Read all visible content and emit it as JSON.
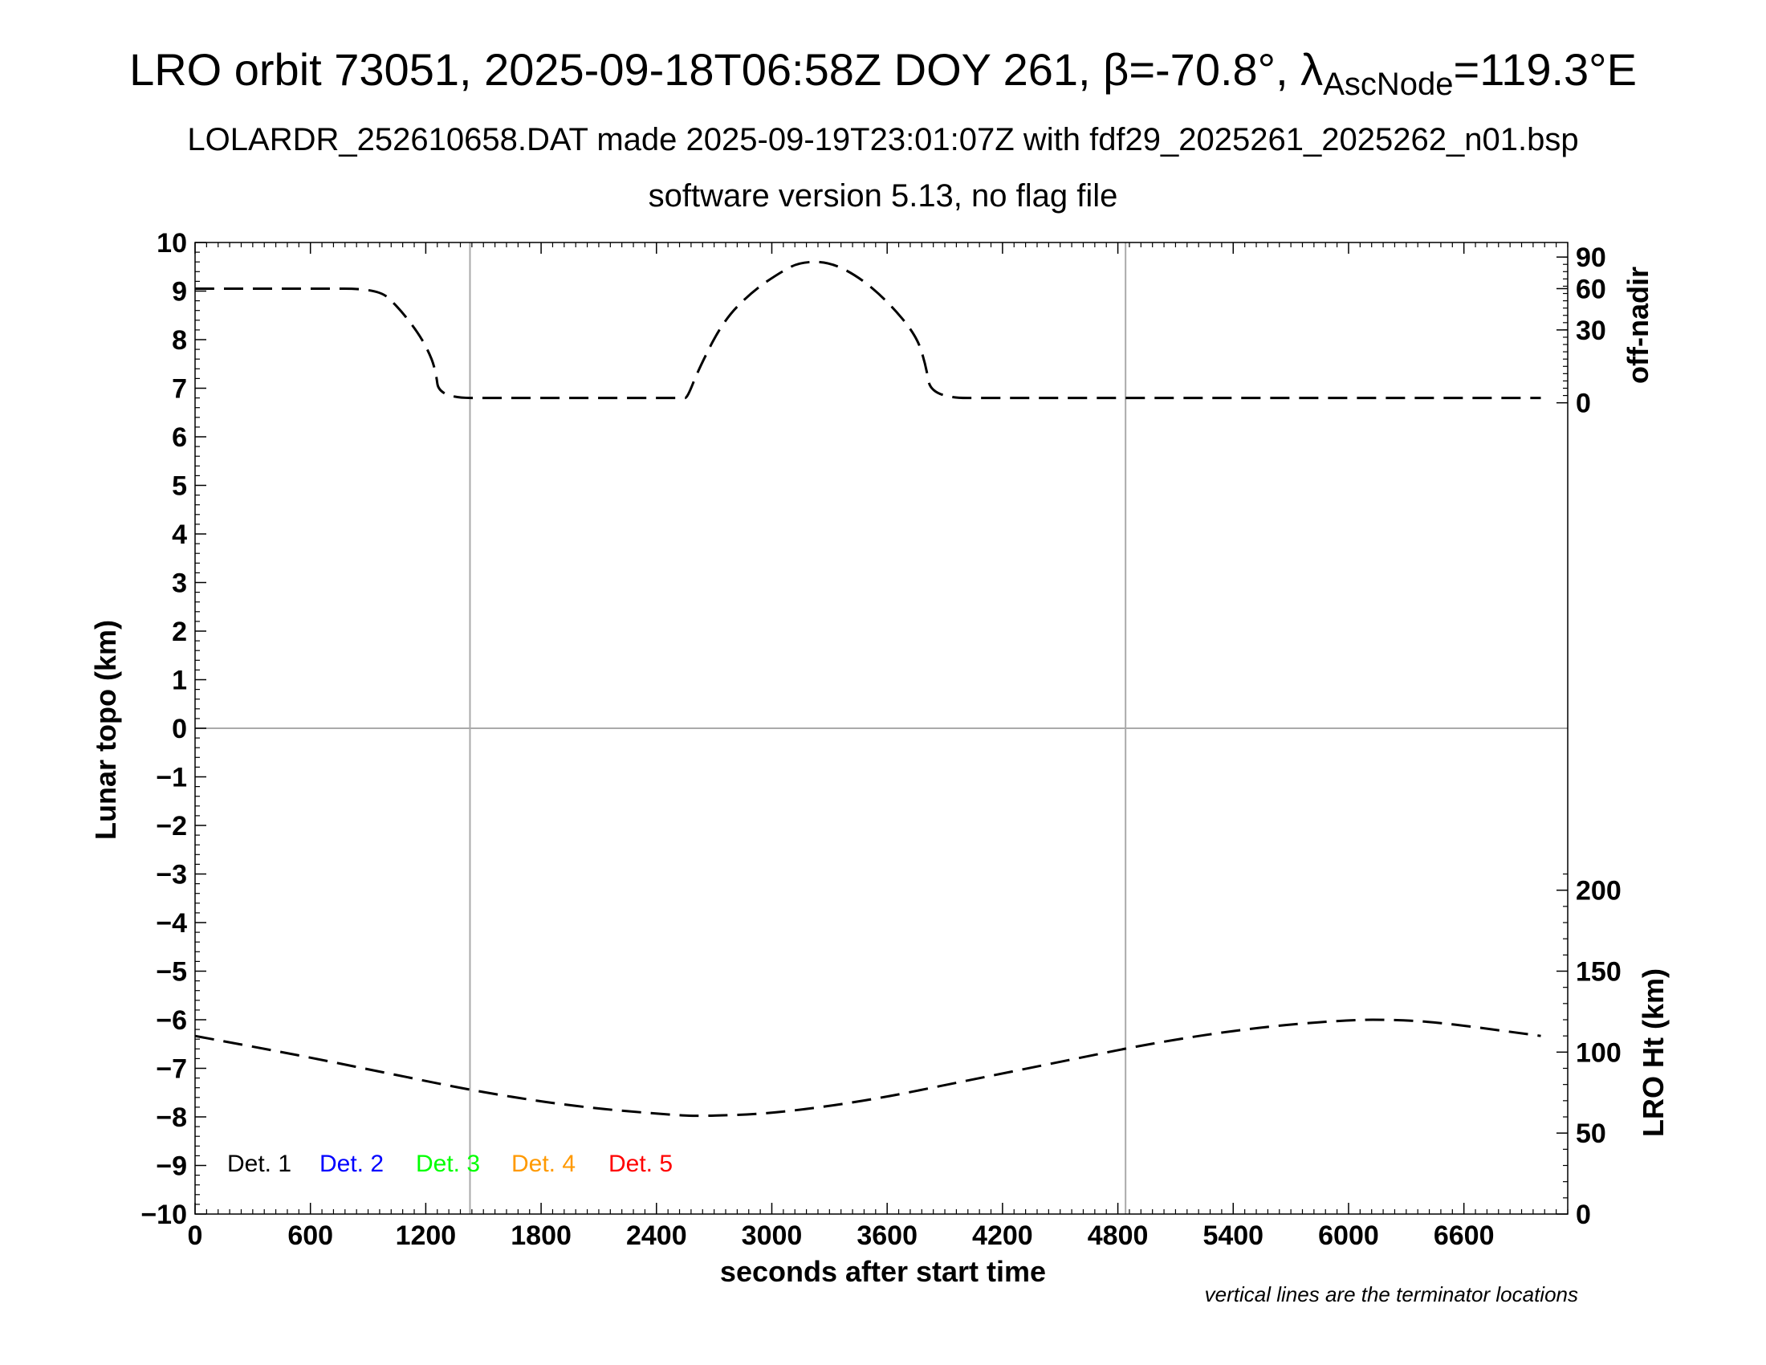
{
  "header": {
    "title_prefix": "LRO orbit 73051, 2025-09-18T06:58Z DOY 261, β=-70.8°, λ",
    "title_sub": "AscNode",
    "title_suffix": "=119.3°E",
    "subtitle1": "LOLARDR_252610658.DAT made 2025-09-19T23:01:07Z with fdf29_2025261_2025262_n01.bsp",
    "subtitle2": "software version 5.13, no flag file"
  },
  "footnote": "vertical lines are the terminator locations",
  "chart_data": {
    "type": "line",
    "xlabel": "seconds after start time",
    "ylabel": "Lunar topo (km)",
    "y2label_top": "off-nadir",
    "y2label_bottom": "LRO Ht (km)",
    "xlim": [
      0,
      7140
    ],
    "ylim": [
      -10,
      10
    ],
    "x_ticks": [
      "0",
      "600",
      "1200",
      "1800",
      "2400",
      "3000",
      "3600",
      "4200",
      "4800",
      "5400",
      "6000",
      "6600"
    ],
    "y_ticks": [
      "10",
      "9",
      "8",
      "7",
      "6",
      "5",
      "4",
      "3",
      "2",
      "1",
      "0",
      "−1",
      "−2",
      "−3",
      "−4",
      "−5",
      "−6",
      "−7",
      "−8",
      "−9",
      "−10"
    ],
    "offnadir_ticks": [
      "90",
      "60",
      "30",
      "0"
    ],
    "height_ticks": [
      "200",
      "150",
      "100",
      "50",
      "0"
    ],
    "terminator_lines_x": [
      1430,
      4840
    ],
    "zero_line_y": 0,
    "legend": [
      {
        "label": "Det. 1",
        "color": "#000000"
      },
      {
        "label": "Det. 2",
        "color": "#0000ff"
      },
      {
        "label": "Det. 3",
        "color": "#00ff00"
      },
      {
        "label": "Det. 4",
        "color": "#ff9900"
      },
      {
        "label": "Det. 5",
        "color": "#ff0000"
      }
    ],
    "series": [
      {
        "role": "off-nadir",
        "style": "dashed",
        "color": "#000000",
        "x": [
          0,
          300,
          600,
          950,
          1050,
          1150,
          1210,
          1250,
          1270,
          1600,
          2000,
          2400,
          2540,
          2560,
          2620,
          2750,
          2900,
          3050,
          3150,
          3300,
          3450,
          3600,
          3750,
          3800,
          3830,
          4200,
          5000,
          6000,
          7000
        ],
        "y_km_equiv": [
          9.05,
          9.05,
          9.05,
          9.05,
          8.7,
          8.2,
          7.8,
          7.4,
          6.8,
          6.8,
          6.8,
          6.8,
          6.8,
          6.8,
          7.4,
          8.4,
          9.0,
          9.4,
          9.6,
          9.6,
          9.3,
          8.8,
          8.1,
          7.5,
          6.8,
          6.8,
          6.8,
          6.8,
          6.8
        ]
      },
      {
        "role": "LRO Ht",
        "style": "dashed",
        "color": "#000000",
        "x": [
          0,
          500,
          1000,
          1500,
          2000,
          2500,
          2640,
          3000,
          3500,
          4000,
          4500,
          5000,
          5500,
          6000,
          6250,
          6500,
          7000
        ],
        "height_km": [
          110,
          99,
          87,
          75,
          66,
          61,
          60.5,
          62,
          70,
          82,
          94,
          106,
          115,
          120,
          120,
          118,
          110
        ]
      }
    ]
  }
}
